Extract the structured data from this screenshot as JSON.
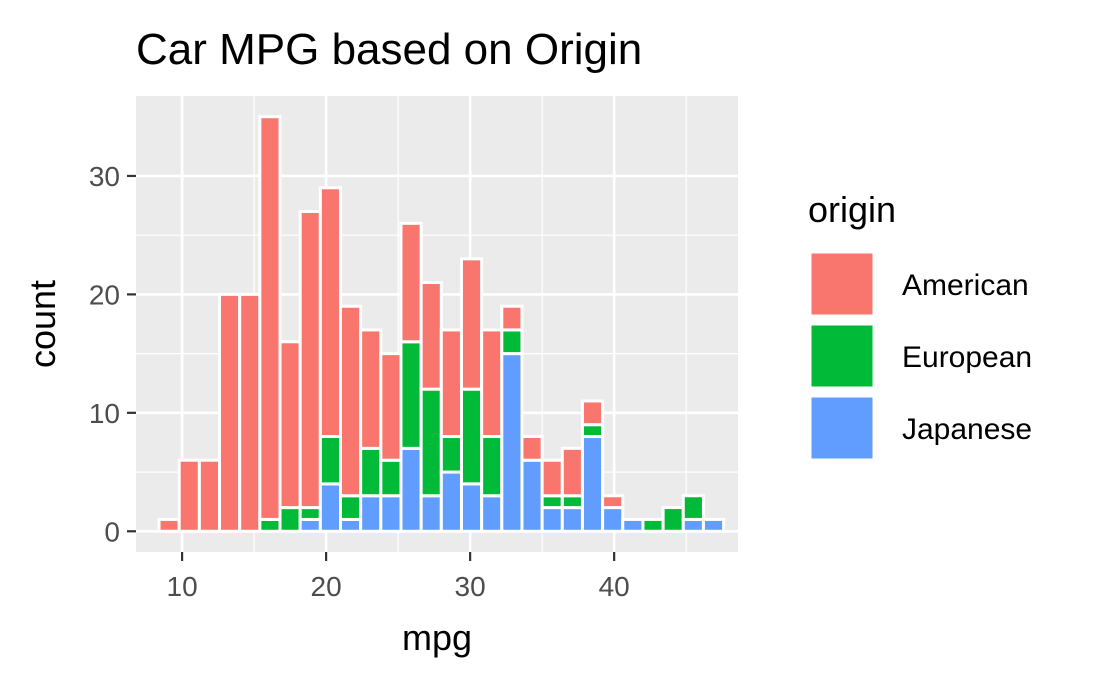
{
  "chart_data": {
    "type": "bar",
    "title": "Car MPG based on Origin",
    "xlabel": "mpg",
    "ylabel": "count",
    "stacked": true,
    "grid": true,
    "legend_position": "right",
    "legend_title": "origin",
    "xlim": [
      6.8,
      48.6
    ],
    "ylim": [
      -1.75,
      36.75
    ],
    "x_ticks": [
      10,
      20,
      30,
      40
    ],
    "y_ticks": [
      0,
      10,
      20,
      30
    ],
    "bin_centers": [
      9.1,
      10.5,
      11.9,
      13.3,
      14.7,
      16.1,
      17.5,
      18.9,
      20.3,
      21.7,
      23.1,
      24.5,
      25.9,
      27.3,
      28.7,
      30.1,
      31.5,
      32.9,
      34.3,
      35.7,
      37.1,
      38.5,
      39.9,
      41.3,
      42.7,
      44.1,
      45.5,
      46.9
    ],
    "series": [
      {
        "name": "American",
        "color": "#F8766D",
        "values": [
          1,
          6,
          6,
          20,
          20,
          34,
          14,
          25,
          21,
          16,
          10,
          9,
          10,
          9,
          9,
          11,
          9,
          2,
          2,
          3,
          4,
          2,
          1,
          0,
          0,
          0,
          0,
          0
        ]
      },
      {
        "name": "European",
        "color": "#00BA38",
        "values": [
          0,
          0,
          0,
          0,
          0,
          1,
          2,
          1,
          4,
          2,
          4,
          3,
          9,
          9,
          3,
          8,
          5,
          2,
          0,
          1,
          1,
          1,
          0,
          0,
          1,
          2,
          2,
          0
        ]
      },
      {
        "name": "Japanese",
        "color": "#619CFF",
        "values": [
          0,
          0,
          0,
          0,
          0,
          0,
          0,
          1,
          4,
          1,
          3,
          3,
          7,
          3,
          5,
          4,
          3,
          15,
          6,
          2,
          2,
          8,
          2,
          1,
          0,
          0,
          1,
          1
        ]
      }
    ]
  }
}
